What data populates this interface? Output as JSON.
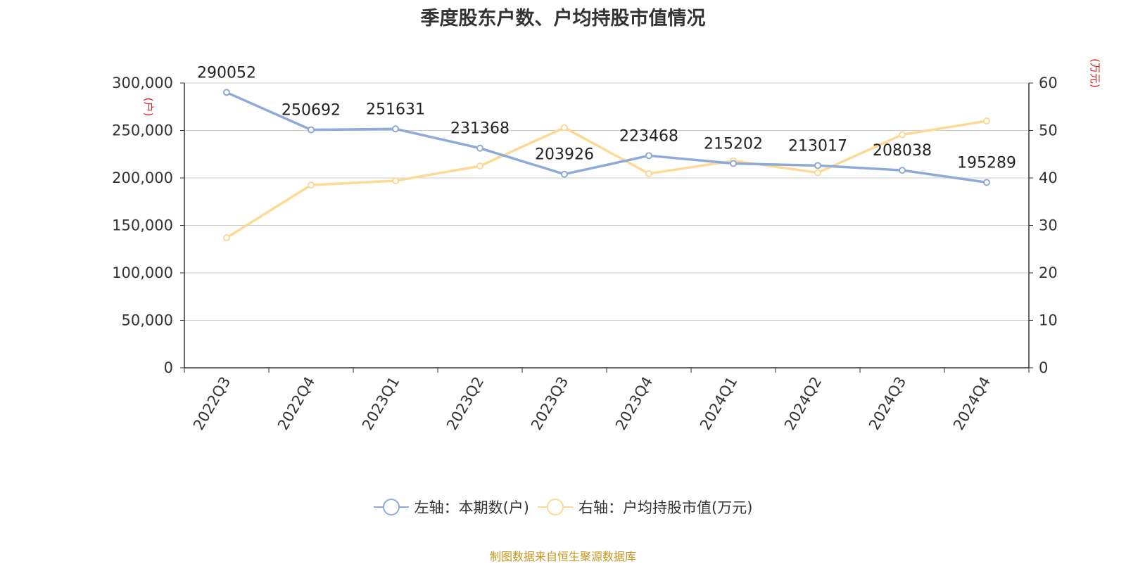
{
  "colors": {
    "left_series": "#8eaad8",
    "right_series": "#fdd996",
    "axis_unit": "#e02020",
    "source": "#c8961e",
    "grid": "#cccccc",
    "axis": "#333333"
  },
  "chart_data": {
    "type": "line",
    "title": "季度股东户数、户均持股市值情况",
    "categories": [
      "2022Q3",
      "2022Q4",
      "2023Q1",
      "2023Q2",
      "2023Q3",
      "2023Q4",
      "2024Q1",
      "2024Q2",
      "2024Q3",
      "2024Q4"
    ],
    "left_axis": {
      "unit": "(户)",
      "ylim": [
        0,
        300000
      ],
      "ticks": [
        "0",
        "50,000",
        "100,000",
        "150,000",
        "200,000",
        "250,000",
        "300,000"
      ]
    },
    "right_axis": {
      "unit": "(万元)",
      "ylim": [
        0,
        60
      ],
      "ticks": [
        "0",
        "10",
        "20",
        "30",
        "40",
        "50",
        "60"
      ]
    },
    "series": [
      {
        "name": "左轴：本期数(户)",
        "axis": "left",
        "values": [
          290052,
          250692,
          251631,
          231368,
          203926,
          223468,
          215202,
          213017,
          208038,
          195289
        ],
        "labels": [
          "290052",
          "250692",
          "251631",
          "231368",
          "203926",
          "223468",
          "215202",
          "213017",
          "208038",
          "195289"
        ]
      },
      {
        "name": "右轴：户均持股市值(万元)",
        "axis": "right",
        "values": [
          27.4,
          38.5,
          39.4,
          42.5,
          50.6,
          40.9,
          43.6,
          41.1,
          49.1,
          52.0
        ]
      }
    ],
    "grid": true,
    "legend_position": "bottom"
  },
  "source_note": "制图数据来自恒生聚源数据库"
}
